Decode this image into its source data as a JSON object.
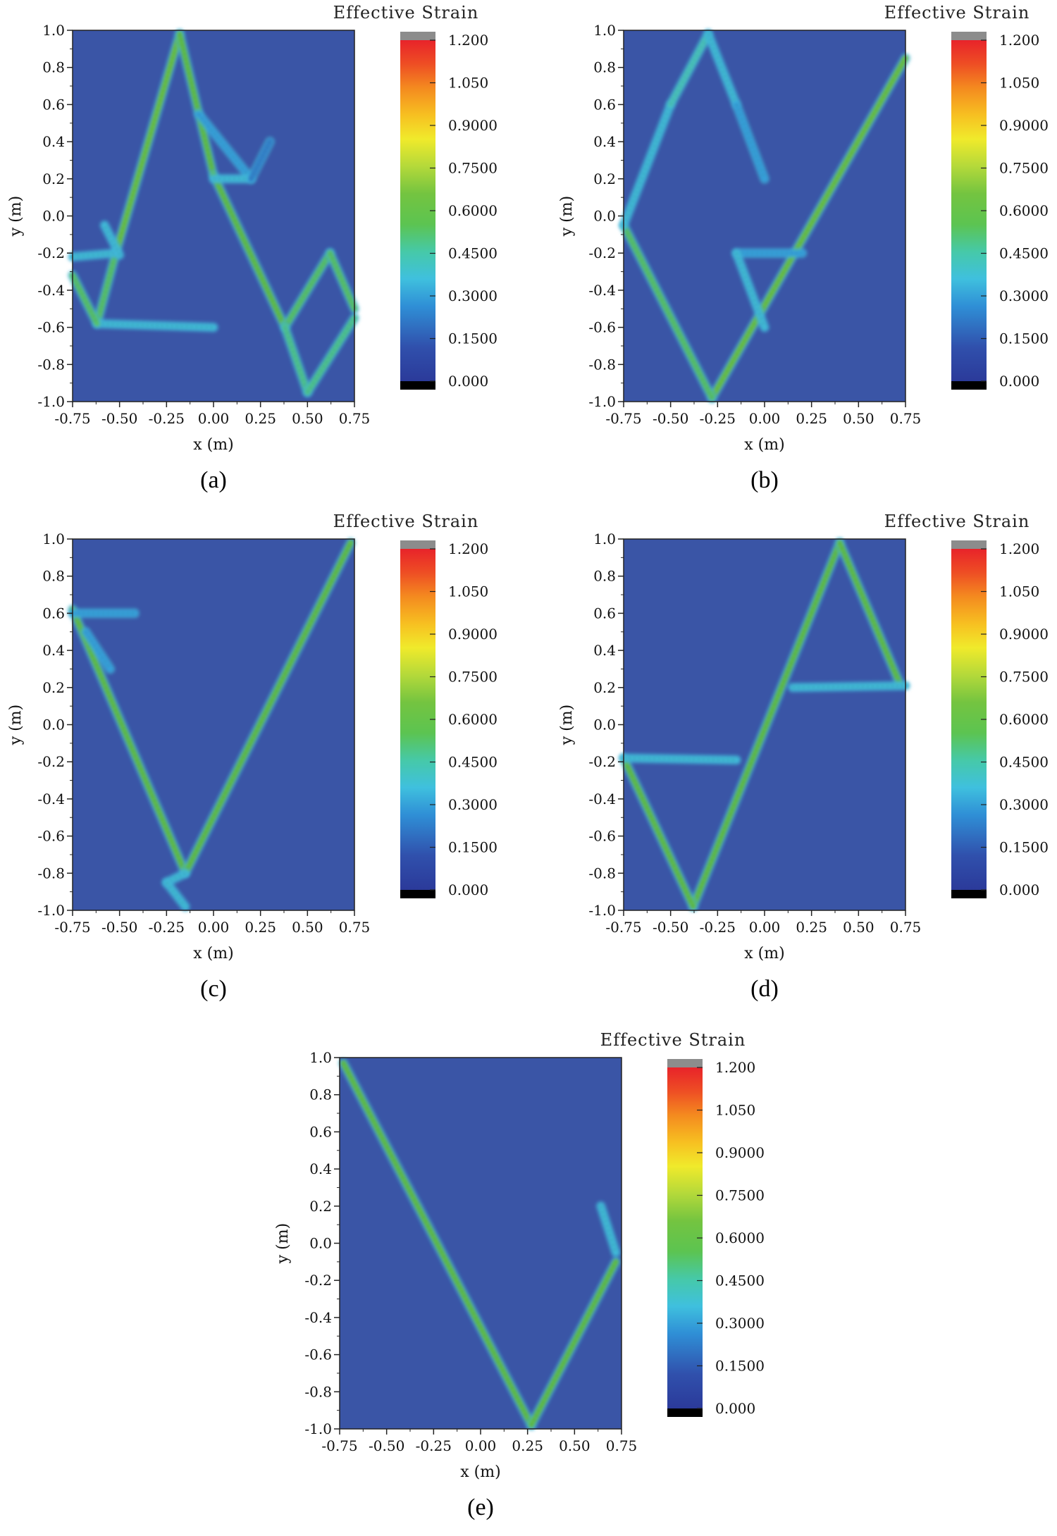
{
  "chart_data": [
    {
      "type": "heatmap",
      "caption": "(a)",
      "colorbar_title": "Effective Strain",
      "xlabel": "x (m)",
      "ylabel": "y (m)",
      "xlim": [
        -0.75,
        0.75
      ],
      "ylim": [
        -1.0,
        1.0
      ],
      "xticks": [
        "-0.75",
        "-0.50",
        "-0.25",
        "0.00",
        "0.25",
        "0.50",
        "0.75"
      ],
      "yticks": [
        "1.0",
        "0.8",
        "0.6",
        "0.4",
        "0.2",
        "0.0",
        "-0.2",
        "-0.4",
        "-0.6",
        "-0.8",
        "-1.0"
      ],
      "colorbar_ticks": [
        "1.200",
        "1.050",
        "0.9000",
        "0.7500",
        "0.6000",
        "0.4500",
        "0.3000",
        "0.1500",
        "0.000"
      ],
      "bands": [
        {
          "x1": -0.52,
          "y1": -0.2,
          "x2": -0.18,
          "y2": 0.98,
          "strain": 0.55
        },
        {
          "x1": -0.18,
          "y1": 0.98,
          "x2": 0.0,
          "y2": 0.22,
          "strain": 0.5
        },
        {
          "x1": 0.0,
          "y1": 0.22,
          "x2": 0.38,
          "y2": -0.6,
          "strain": 0.5
        },
        {
          "x1": -0.52,
          "y1": -0.2,
          "x2": -0.62,
          "y2": -0.58,
          "strain": 0.45
        },
        {
          "x1": -0.62,
          "y1": -0.58,
          "x2": 0.0,
          "y2": -0.6,
          "strain": 0.3
        },
        {
          "x1": -0.75,
          "y1": -0.32,
          "x2": -0.62,
          "y2": -0.58,
          "strain": 0.45
        },
        {
          "x1": -0.75,
          "y1": -0.22,
          "x2": -0.52,
          "y2": -0.2,
          "strain": 0.3
        },
        {
          "x1": -0.5,
          "y1": -0.21,
          "x2": -0.58,
          "y2": -0.05,
          "strain": 0.3
        },
        {
          "x1": -0.08,
          "y1": 0.55,
          "x2": 0.2,
          "y2": 0.2,
          "strain": 0.25
        },
        {
          "x1": 0.0,
          "y1": 0.2,
          "x2": 0.2,
          "y2": 0.2,
          "strain": 0.3
        },
        {
          "x1": 0.2,
          "y1": 0.2,
          "x2": 0.3,
          "y2": 0.4,
          "strain": 0.2
        },
        {
          "x1": 0.38,
          "y1": -0.6,
          "x2": 0.62,
          "y2": -0.2,
          "strain": 0.45
        },
        {
          "x1": 0.62,
          "y1": -0.2,
          "x2": 0.75,
          "y2": -0.5,
          "strain": 0.45
        },
        {
          "x1": 0.38,
          "y1": -0.6,
          "x2": 0.5,
          "y2": -0.95,
          "strain": 0.4
        },
        {
          "x1": 0.5,
          "y1": -0.95,
          "x2": 0.75,
          "y2": -0.55,
          "strain": 0.4
        }
      ]
    },
    {
      "type": "heatmap",
      "caption": "(b)",
      "colorbar_title": "Effective Strain",
      "xlabel": "x (m)",
      "ylabel": "y (m)",
      "xlim": [
        -0.75,
        0.75
      ],
      "ylim": [
        -1.0,
        1.0
      ],
      "xticks": [
        "-0.75",
        "-0.50",
        "-0.25",
        "0.00",
        "0.25",
        "0.50",
        "0.75"
      ],
      "yticks": [
        "1.0",
        "0.8",
        "0.6",
        "0.4",
        "0.2",
        "0.0",
        "-0.2",
        "-0.4",
        "-0.6",
        "-0.8",
        "-1.0"
      ],
      "colorbar_ticks": [
        "1.200",
        "1.050",
        "0.9000",
        "0.7500",
        "0.6000",
        "0.4500",
        "0.3000",
        "0.1500",
        "0.000"
      ],
      "bands": [
        {
          "x1": -0.28,
          "y1": -0.98,
          "x2": 0.75,
          "y2": 0.85,
          "strain": 0.55
        },
        {
          "x1": -0.28,
          "y1": -0.98,
          "x2": -0.75,
          "y2": -0.05,
          "strain": 0.45
        },
        {
          "x1": -0.75,
          "y1": -0.05,
          "x2": -0.5,
          "y2": 0.6,
          "strain": 0.3
        },
        {
          "x1": -0.5,
          "y1": 0.6,
          "x2": -0.3,
          "y2": 0.98,
          "strain": 0.35
        },
        {
          "x1": -0.3,
          "y1": 0.98,
          "x2": -0.15,
          "y2": 0.6,
          "strain": 0.3
        },
        {
          "x1": -0.15,
          "y1": 0.6,
          "x2": 0.0,
          "y2": 0.2,
          "strain": 0.25
        },
        {
          "x1": -0.15,
          "y1": -0.2,
          "x2": 0.2,
          "y2": -0.2,
          "strain": 0.25
        },
        {
          "x1": -0.15,
          "y1": -0.2,
          "x2": 0.0,
          "y2": -0.6,
          "strain": 0.3
        }
      ]
    },
    {
      "type": "heatmap",
      "caption": "(c)",
      "colorbar_title": "Effective Strain",
      "xlabel": "x (m)",
      "ylabel": "y (m)",
      "xlim": [
        -0.75,
        0.75
      ],
      "ylim": [
        -1.0,
        1.0
      ],
      "xticks": [
        "-0.75",
        "-0.50",
        "-0.25",
        "0.00",
        "0.25",
        "0.50",
        "0.75"
      ],
      "yticks": [
        "1.0",
        "0.8",
        "0.6",
        "0.4",
        "0.2",
        "0.0",
        "-0.2",
        "-0.4",
        "-0.6",
        "-0.8",
        "-1.0"
      ],
      "colorbar_ticks": [
        "1.200",
        "1.050",
        "0.9000",
        "0.7500",
        "0.6000",
        "0.4500",
        "0.3000",
        "0.1500",
        "0.000"
      ],
      "bands": [
        {
          "x1": -0.75,
          "y1": 0.62,
          "x2": -0.15,
          "y2": -0.8,
          "strain": 0.5
        },
        {
          "x1": -0.15,
          "y1": -0.8,
          "x2": 0.73,
          "y2": 0.98,
          "strain": 0.5
        },
        {
          "x1": -0.15,
          "y1": -0.8,
          "x2": -0.25,
          "y2": -0.85,
          "strain": 0.3
        },
        {
          "x1": -0.25,
          "y1": -0.85,
          "x2": -0.15,
          "y2": -0.98,
          "strain": 0.3
        },
        {
          "x1": -0.75,
          "y1": 0.6,
          "x2": -0.42,
          "y2": 0.6,
          "strain": 0.25
        },
        {
          "x1": -0.68,
          "y1": 0.5,
          "x2": -0.55,
          "y2": 0.3,
          "strain": 0.25
        }
      ]
    },
    {
      "type": "heatmap",
      "caption": "(d)",
      "colorbar_title": "Effective Strain",
      "xlabel": "x (m)",
      "ylabel": "y (m)",
      "xlim": [
        -0.75,
        0.75
      ],
      "ylim": [
        -1.0,
        1.0
      ],
      "xticks": [
        "-0.75",
        "-0.50",
        "-0.25",
        "0.00",
        "0.25",
        "0.50",
        "0.75"
      ],
      "yticks": [
        "1.0",
        "0.8",
        "0.6",
        "0.4",
        "0.2",
        "0.0",
        "-0.2",
        "-0.4",
        "-0.6",
        "-0.8",
        "-1.0"
      ],
      "colorbar_ticks": [
        "1.200",
        "1.050",
        "0.9000",
        "0.7500",
        "0.6000",
        "0.4500",
        "0.3000",
        "0.1500",
        "0.000"
      ],
      "bands": [
        {
          "x1": -0.38,
          "y1": -0.98,
          "x2": 0.4,
          "y2": 0.98,
          "strain": 0.5
        },
        {
          "x1": 0.4,
          "y1": 0.98,
          "x2": 0.72,
          "y2": 0.22,
          "strain": 0.5
        },
        {
          "x1": -0.38,
          "y1": -0.98,
          "x2": -0.75,
          "y2": -0.18,
          "strain": 0.5
        },
        {
          "x1": -0.75,
          "y1": -0.18,
          "x2": -0.15,
          "y2": -0.19,
          "strain": 0.3
        },
        {
          "x1": 0.15,
          "y1": 0.2,
          "x2": 0.75,
          "y2": 0.21,
          "strain": 0.3
        }
      ]
    },
    {
      "type": "heatmap",
      "caption": "(e)",
      "colorbar_title": "Effective Strain",
      "xlabel": "x (m)",
      "ylabel": "y (m)",
      "xlim": [
        -0.75,
        0.75
      ],
      "ylim": [
        -1.0,
        1.0
      ],
      "xticks": [
        "-0.75",
        "-0.50",
        "-0.25",
        "0.00",
        "0.25",
        "0.50",
        "0.75"
      ],
      "yticks": [
        "1.0",
        "0.8",
        "0.6",
        "0.4",
        "0.2",
        "0.0",
        "-0.2",
        "-0.4",
        "-0.6",
        "-0.8",
        "-1.0"
      ],
      "colorbar_ticks": [
        "1.200",
        "1.050",
        "0.9000",
        "0.7500",
        "0.6000",
        "0.4500",
        "0.3000",
        "0.1500",
        "0.000"
      ],
      "bands": [
        {
          "x1": -0.73,
          "y1": 0.97,
          "x2": 0.27,
          "y2": -0.98,
          "strain": 0.5
        },
        {
          "x1": 0.27,
          "y1": -0.98,
          "x2": 0.72,
          "y2": -0.1,
          "strain": 0.5
        },
        {
          "x1": 0.64,
          "y1": 0.2,
          "x2": 0.72,
          "y2": -0.05,
          "strain": 0.3
        }
      ]
    }
  ]
}
